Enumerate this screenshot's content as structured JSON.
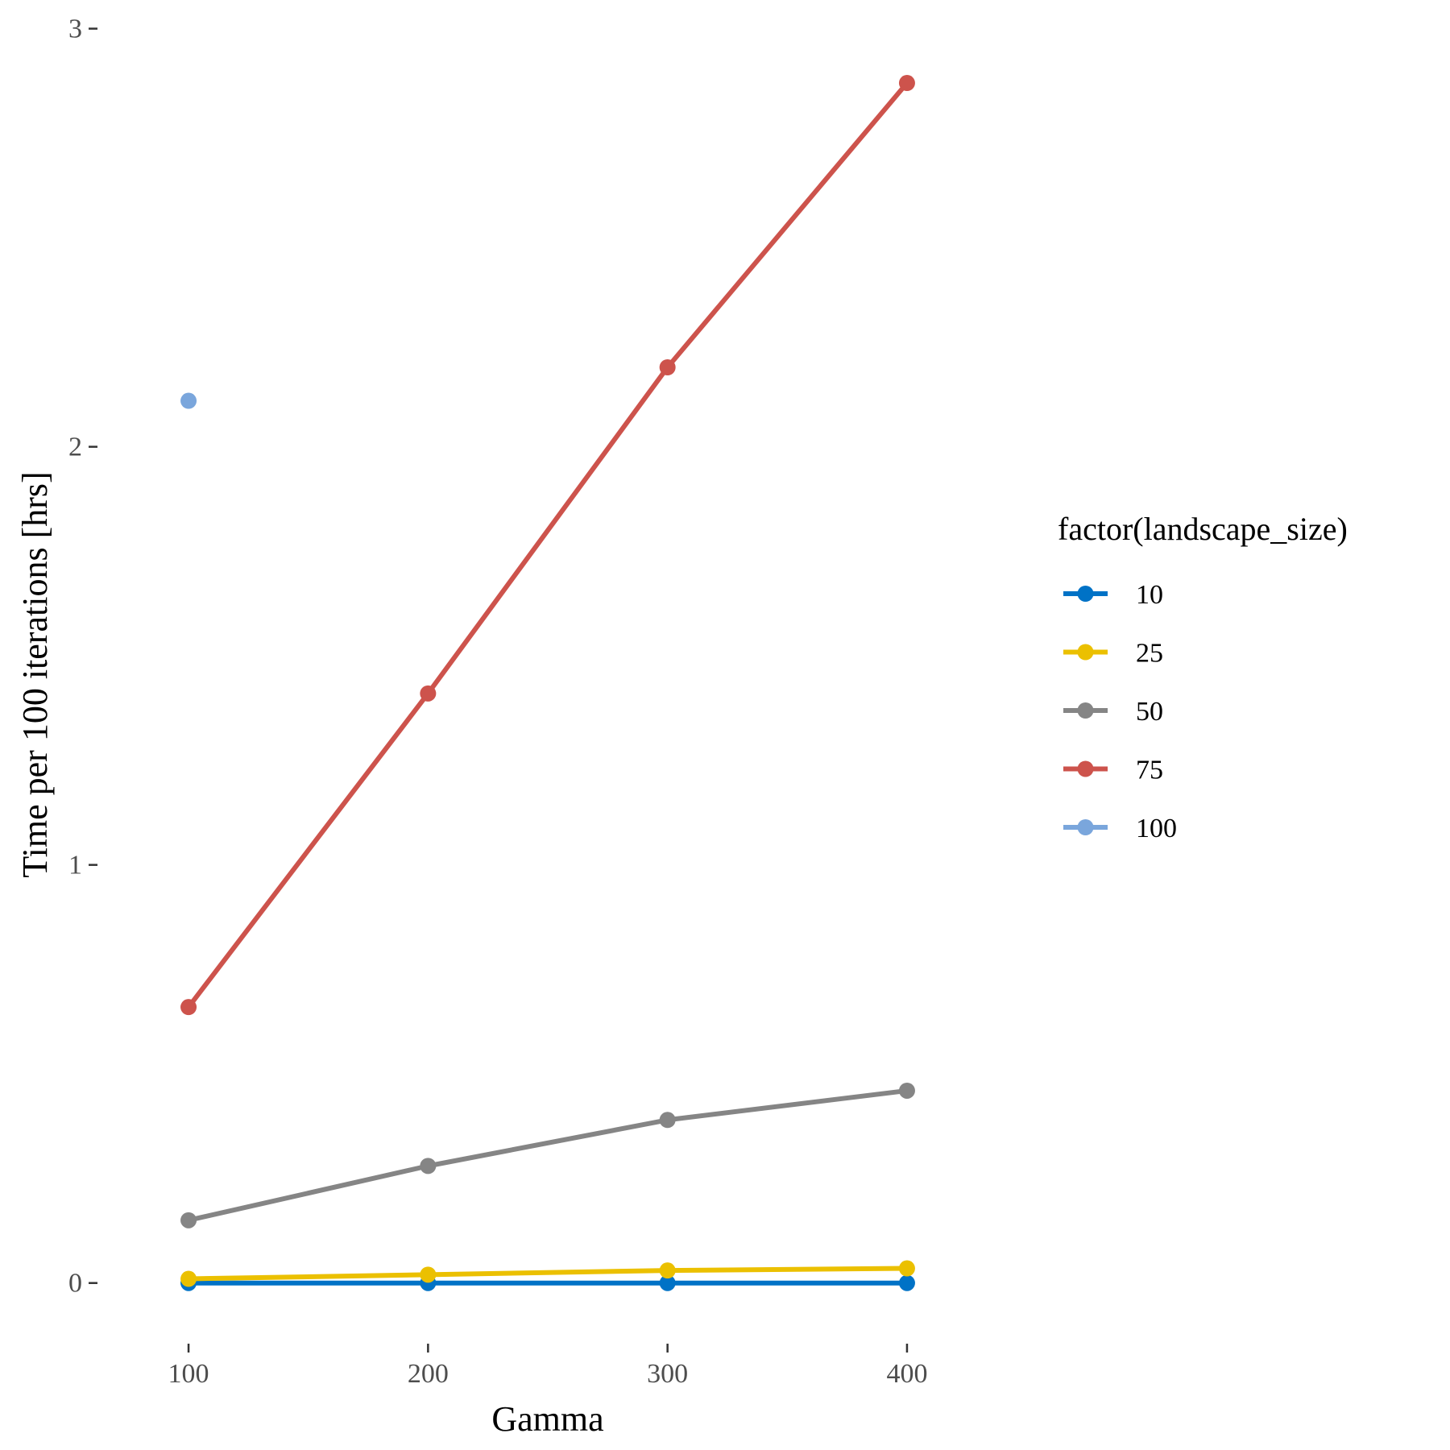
{
  "chart_data": {
    "type": "line",
    "xlabel": "Gamma",
    "ylabel": "Time per 100 iterations [hrs]",
    "x_ticks": [
      100,
      200,
      300,
      400
    ],
    "y_ticks": [
      0,
      1,
      2,
      3
    ],
    "xlim": [
      65,
      435
    ],
    "ylim": [
      -0.12,
      3.03
    ],
    "grid": false,
    "legend": {
      "title": "factor(landscape_size)",
      "position": "right"
    },
    "series": [
      {
        "name": "10",
        "color": "#0072C6",
        "x": [
          100,
          200,
          300,
          400
        ],
        "y": [
          0.0,
          0.0,
          0.0,
          0.0
        ]
      },
      {
        "name": "25",
        "color": "#EBC000",
        "x": [
          100,
          200,
          300,
          400
        ],
        "y": [
          0.01,
          0.02,
          0.03,
          0.035
        ]
      },
      {
        "name": "50",
        "color": "#858585",
        "x": [
          100,
          200,
          300,
          400
        ],
        "y": [
          0.15,
          0.28,
          0.39,
          0.46
        ]
      },
      {
        "name": "75",
        "color": "#CD534C",
        "x": [
          100,
          200,
          300,
          400
        ],
        "y": [
          0.66,
          1.41,
          2.19,
          2.87
        ]
      },
      {
        "name": "100",
        "color": "#7AA6DC",
        "x": [
          100
        ],
        "y": [
          2.11
        ]
      }
    ]
  }
}
